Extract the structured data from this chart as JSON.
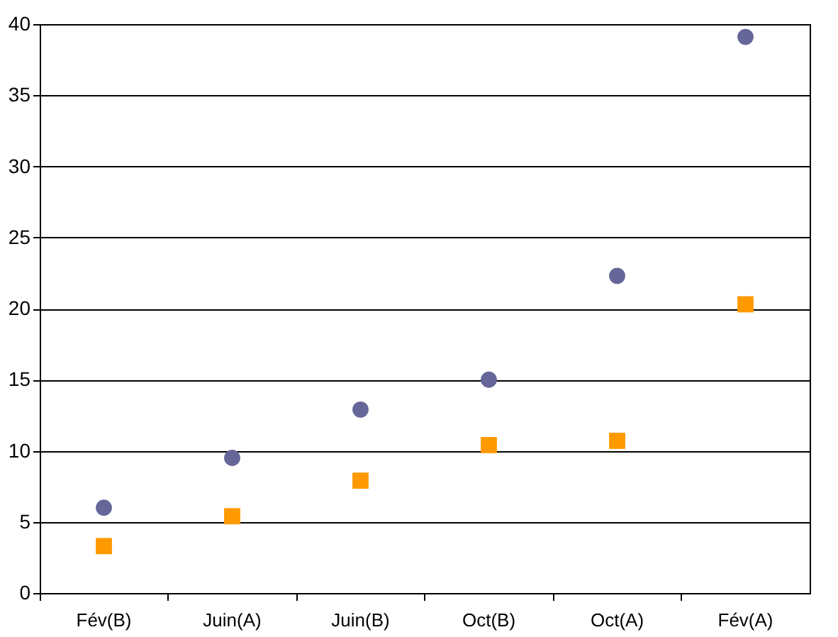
{
  "chart_data": {
    "type": "scatter",
    "categories": [
      "Fév(B)",
      "Juin(A)",
      "Juin(B)",
      "Oct(B)",
      "Oct(A)",
      "Fév(A)"
    ],
    "series": [
      {
        "color": "#ff9900",
        "marker": "square",
        "values": [
          3.3,
          5.4,
          7.9,
          10.4,
          10.7,
          20.3
        ]
      },
      {
        "color": "#666699",
        "marker": "circle",
        "values": [
          6.0,
          9.5,
          12.9,
          15.0,
          22.3,
          39.1
        ]
      }
    ],
    "ylim": [
      0,
      40
    ],
    "yticks": [
      0,
      5,
      10,
      15,
      20,
      25,
      30,
      35,
      40
    ],
    "grid": "y"
  }
}
